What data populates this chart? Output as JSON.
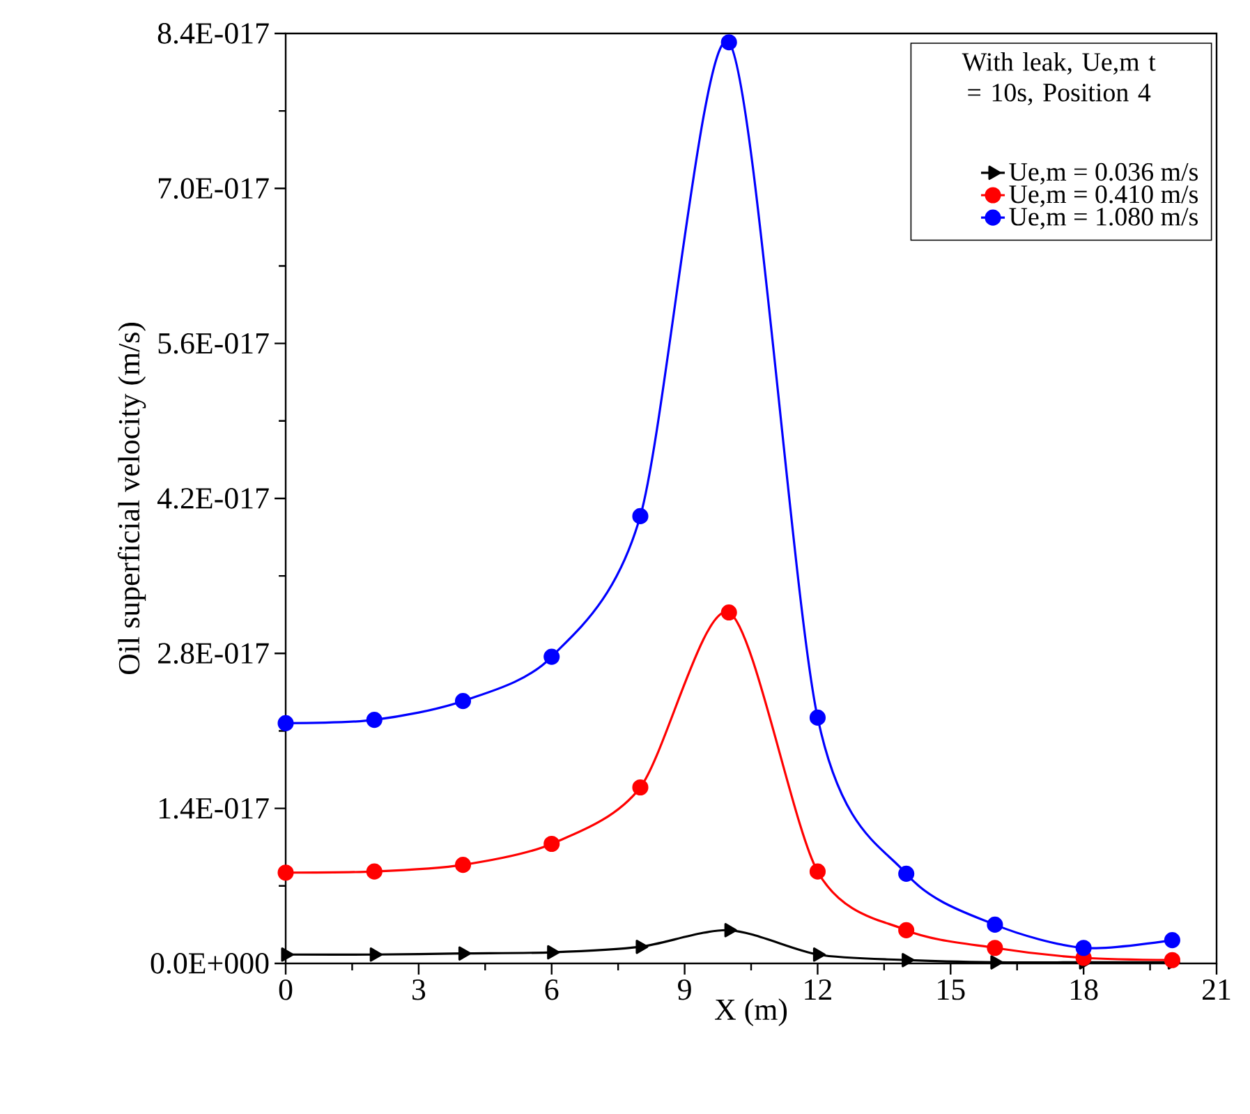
{
  "chart_data": {
    "type": "line",
    "xlabel": "X (m)",
    "ylabel": "Oil superficial velocity (m/s)",
    "legend_title": "With leak, Ue,m t = 10s, Position 4",
    "legend": "top right",
    "grid": false,
    "line_style": "solid",
    "x": [
      0,
      2,
      4,
      6,
      8,
      10,
      12,
      14,
      16,
      18,
      20
    ],
    "xlim": [
      0,
      21
    ],
    "xticks": [
      0,
      3,
      6,
      9,
      12,
      15,
      18,
      21
    ],
    "ylim": [
      0,
      8.4e-17
    ],
    "yticks": [
      {
        "value": 0,
        "label": "0.0E+000"
      },
      {
        "value": 1.4e-17,
        "label": "1.4E-017"
      },
      {
        "value": 2.8e-17,
        "label": "2.8E-017"
      },
      {
        "value": 4.2e-17,
        "label": "4.2E-017"
      },
      {
        "value": 5.6e-17,
        "label": "5.6E-017"
      },
      {
        "value": 7e-17,
        "label": "7.0E-017"
      },
      {
        "value": 8.4e-17,
        "label": "8.4E-017"
      }
    ],
    "series": [
      {
        "name": "Ue,m = 0.036 m/s",
        "color": "#000000",
        "marker": "triangle",
        "values": [
          8e-19,
          8e-19,
          9e-19,
          1e-18,
          1.5e-18,
          3e-18,
          8e-19,
          3e-19,
          1e-19,
          1e-19,
          1e-19
        ]
      },
      {
        "name": "Ue,m = 0.410 m/s",
        "color": "#ff0000",
        "marker": "circle",
        "values": [
          8.2e-18,
          8.3e-18,
          8.9e-18,
          1.08e-17,
          1.59e-17,
          3.17e-17,
          8.3e-18,
          3e-18,
          1.4e-18,
          5e-19,
          3e-19
        ]
      },
      {
        "name": "Ue,m = 1.080 m/s",
        "color": "#0000ff",
        "marker": "circle",
        "values": [
          2.17e-17,
          2.2e-17,
          2.37e-17,
          2.77e-17,
          4.04e-17,
          8.32e-17,
          2.22e-17,
          8.1e-18,
          3.5e-18,
          1.4e-18,
          2.1e-18
        ]
      }
    ]
  }
}
